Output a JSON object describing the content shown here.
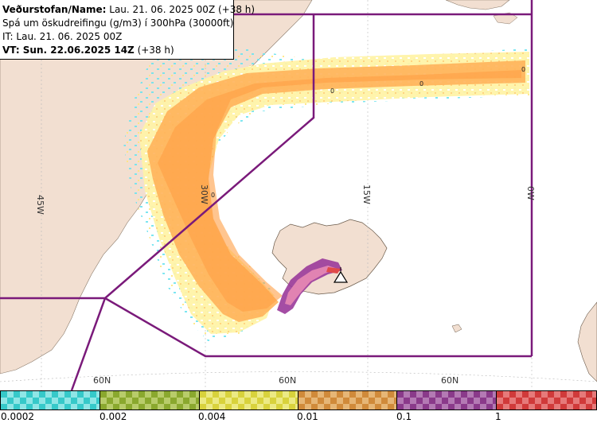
{
  "header": {
    "line1_bold": "Veðurstofan/Name:",
    "line1_rest": " Lau. 21. 06. 2025 00Z (+38 h)",
    "line2": "Spá um öskudreifingu (g/m3) í 300hPa (30000ft)",
    "line3": "IT: Lau. 21. 06. 2025 00Z",
    "line4_bold": "VT: Sun. 22.06.2025 14Z",
    "line4_rest": " (+38 h)"
  },
  "map_labels": {
    "lon_45w": "45W",
    "lon_30w": "30W",
    "lon_15w": "15W",
    "lon_0w": "0W",
    "lat_60n_a": "60N",
    "lat_60n_b": "60N",
    "lat_60n_c": "60N",
    "zero": "0"
  },
  "legend": {
    "labels": [
      "0.0002",
      "0.002",
      "0.004",
      "0.01",
      "0.1",
      "1"
    ],
    "colors": [
      "#36c9c9",
      "#8aa82e",
      "#d8d23c",
      "#d08a3a",
      "#8a3a8a",
      "#d03a3a"
    ],
    "colors_alt": [
      "#8fe6e6",
      "#b8cc6a",
      "#ecea84",
      "#e6b676",
      "#b47ab4",
      "#e67a7a"
    ]
  },
  "colors": {
    "land": "#f2dfd1",
    "sea": "#ffffff",
    "boundary": "#7a1a7a",
    "plume_light": "#ffe680",
    "plume_mid": "#ffb35a",
    "plume_purple": "#9a3a9a",
    "plume_pink": "#e88ab4",
    "speckle": "#6fe3ef"
  },
  "volcano_icon": "volcano-triangle-icon"
}
